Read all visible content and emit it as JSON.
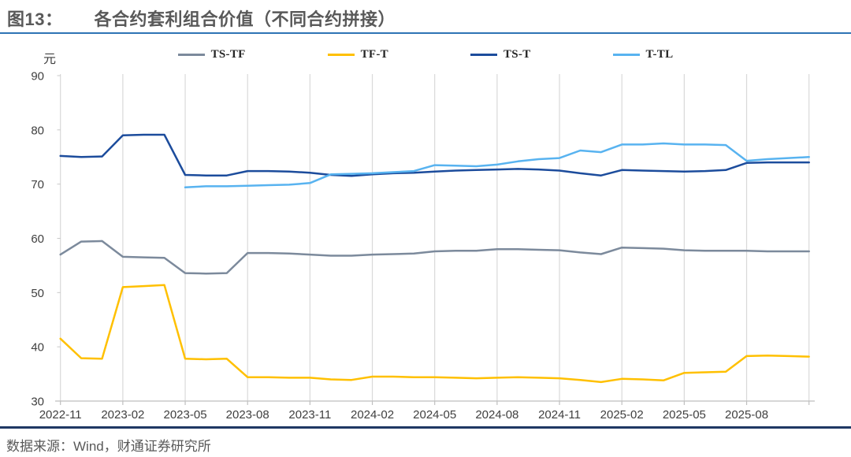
{
  "title": {
    "figure_label": "图13：",
    "text": "各合约套利组合价值（不同合约拼接）"
  },
  "footer": {
    "source": "数据来源：Wind，财通证券研究所"
  },
  "colors": {
    "title_text": "#595959",
    "title_rule": "#2E74B5",
    "footer_rule": "#1F3864",
    "gridline": "#D9D9D9",
    "axis_line": "#BFBFBF",
    "axis_text": "#404040"
  },
  "chart_data": {
    "type": "line",
    "title": "各合约套利组合价值（不同合约拼接）",
    "unit_label": "元",
    "ylim": [
      30,
      90
    ],
    "y_ticks": [
      90,
      80,
      70,
      60,
      50,
      40,
      30
    ],
    "grid": "vertical-only",
    "legend_position": "top",
    "x_tick_labels": [
      "2022-11",
      "2023-02",
      "2023-05",
      "2023-08",
      "2023-11",
      "2024-02",
      "2024-05",
      "2024-08",
      "2024-11",
      "2025-02",
      "2025-05",
      "2025-08"
    ],
    "months": [
      "2022-11",
      "2022-12",
      "2023-01",
      "2023-02",
      "2023-03",
      "2023-04",
      "2023-05",
      "2023-06",
      "2023-07",
      "2023-08",
      "2023-09",
      "2023-10",
      "2023-11",
      "2023-12",
      "2024-01",
      "2024-02",
      "2024-03",
      "2024-04",
      "2024-05",
      "2024-06",
      "2024-07",
      "2024-08",
      "2024-09",
      "2024-10",
      "2024-11",
      "2024-12",
      "2025-01",
      "2025-02",
      "2025-03",
      "2025-04",
      "2025-05",
      "2025-06",
      "2025-07",
      "2025-08",
      "2025-09",
      "2025-10",
      "2025-11"
    ],
    "series": [
      {
        "name": "TS-TF",
        "color": "#7C8A9C",
        "values": [
          57.0,
          59.4,
          59.5,
          56.6,
          56.5,
          56.4,
          53.6,
          53.5,
          53.6,
          57.3,
          57.3,
          57.2,
          57.0,
          56.8,
          56.8,
          57.0,
          57.1,
          57.2,
          57.6,
          57.7,
          57.7,
          58.0,
          58.0,
          57.9,
          57.8,
          57.4,
          57.1,
          58.3,
          58.2,
          58.1,
          57.8,
          57.7,
          57.7,
          57.7,
          57.6,
          57.6,
          57.6
        ]
      },
      {
        "name": "TF-T",
        "color": "#FFC000",
        "values": [
          41.5,
          37.9,
          37.8,
          51.0,
          51.2,
          51.4,
          37.8,
          37.7,
          37.8,
          34.4,
          34.4,
          34.3,
          34.3,
          34.0,
          33.9,
          34.5,
          34.5,
          34.4,
          34.4,
          34.3,
          34.2,
          34.3,
          34.4,
          34.3,
          34.2,
          33.9,
          33.5,
          34.1,
          34.0,
          33.8,
          35.2,
          35.3,
          35.4,
          38.3,
          38.4,
          38.3,
          38.2
        ]
      },
      {
        "name": "TS-T",
        "color": "#1C4C9C",
        "values": [
          75.2,
          75.0,
          75.1,
          79.0,
          79.1,
          79.1,
          71.7,
          71.6,
          71.6,
          72.4,
          72.4,
          72.3,
          72.1,
          71.7,
          71.5,
          71.8,
          72.0,
          72.1,
          72.3,
          72.5,
          72.6,
          72.7,
          72.8,
          72.7,
          72.5,
          72.0,
          71.6,
          72.6,
          72.5,
          72.4,
          72.3,
          72.4,
          72.6,
          73.9,
          74.0,
          74.0,
          74.0
        ]
      },
      {
        "name": "T-TL",
        "color": "#58B3F0",
        "values": [
          null,
          null,
          null,
          null,
          null,
          null,
          69.4,
          69.6,
          69.6,
          69.7,
          69.8,
          69.9,
          70.2,
          71.8,
          71.9,
          72.0,
          72.2,
          72.4,
          73.5,
          73.4,
          73.3,
          73.6,
          74.2,
          74.6,
          74.8,
          76.2,
          75.9,
          77.3,
          77.3,
          77.5,
          77.3,
          77.3,
          77.2,
          74.3,
          74.6,
          74.8,
          75.0
        ]
      }
    ]
  }
}
